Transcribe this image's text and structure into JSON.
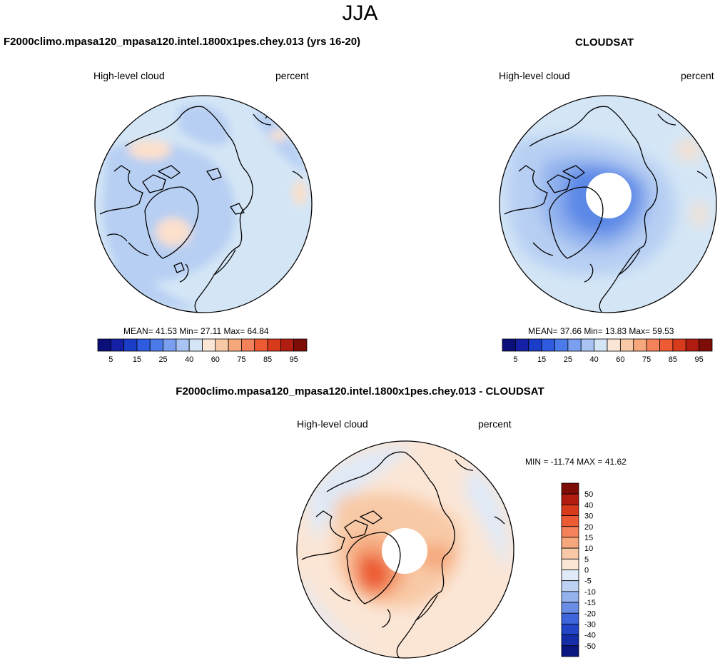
{
  "page": {
    "title": "JJA"
  },
  "colors": {
    "ocean_blue": "#d4e6f6",
    "land_blue": "#b7cff3",
    "light_peach": "#fbe0cc",
    "missing": "#ffffff",
    "coast": "#000000"
  },
  "panels": [
    {
      "title": "F2000climo.mpasa120_mpasa120.intel.1800x1pes.chey.013 (yrs 16-20)",
      "left_label": "High-level cloud",
      "right_label": "percent",
      "stats": "MEAN=  41.53  Min=  27.11  Max=  64.84",
      "colorbar": {
        "colors": [
          "#0a0f7a",
          "#1520a6",
          "#1a3ec8",
          "#2e5be0",
          "#4a7be8",
          "#7a9ff0",
          "#a9c3f3",
          "#d4e6f6",
          "#fbe6d6",
          "#f8c9a6",
          "#f6a77b",
          "#f3815a",
          "#ec5b33",
          "#d83a1c",
          "#b01c10",
          "#7d0d06"
        ],
        "labels": [
          "5",
          "15",
          "25",
          "40",
          "60",
          "75",
          "85",
          "95"
        ]
      }
    },
    {
      "title": "CLOUDSAT",
      "left_label": "High-level cloud",
      "right_label": "percent",
      "stats": "MEAN=  37.66  Min=  13.83  Max=  59.53",
      "colorbar": {
        "colors": [
          "#0a0f7a",
          "#1520a6",
          "#1a3ec8",
          "#2e5be0",
          "#4a7be8",
          "#7a9ff0",
          "#a9c3f3",
          "#d4e6f6",
          "#fbe6d6",
          "#f8c9a6",
          "#f6a77b",
          "#f3815a",
          "#ec5b33",
          "#d83a1c",
          "#b01c10",
          "#7d0d06"
        ],
        "labels": [
          "5",
          "15",
          "25",
          "40",
          "60",
          "75",
          "85",
          "95"
        ]
      }
    },
    {
      "title": "F2000climo.mpasa120_mpasa120.intel.1800x1pes.chey.013 - CLOUDSAT",
      "left_label": "High-level cloud",
      "right_label": "percent",
      "stats": "MIN = -11.74 MAX =  41.62",
      "colorbar": {
        "colors": [
          "#7d0d06",
          "#b01c10",
          "#d83a1c",
          "#ec5b33",
          "#f3815a",
          "#f6a77b",
          "#f8c9a6",
          "#fbe6d6",
          "#dfe9f7",
          "#bdd2f3",
          "#94b3ee",
          "#6a8ee6",
          "#3f65dc",
          "#2245c8",
          "#152ea8",
          "#0a1780"
        ],
        "labels": [
          "50",
          "40",
          "30",
          "20",
          "15",
          "10",
          "5",
          "0",
          "-5",
          "-10",
          "-15",
          "-20",
          "-30",
          "-40",
          "-50"
        ]
      }
    }
  ]
}
